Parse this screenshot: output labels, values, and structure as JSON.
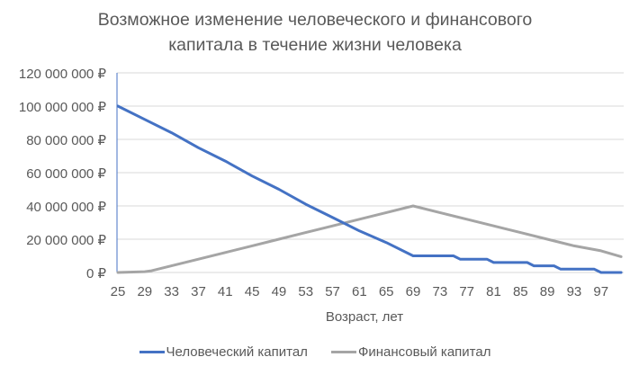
{
  "chart_data": {
    "type": "line",
    "title": "Возможное изменение человеческого и финансового капитала в течение жизни человека",
    "title_lines": [
      "Возможное изменение человеческого и финансового",
      "капитала в течение жизни человека"
    ],
    "xlabel": "Возраст, лет",
    "ylabel": "",
    "ylim": [
      0,
      120000000
    ],
    "xlim": [
      25,
      100
    ],
    "grid": true,
    "legend_position": "bottom",
    "y_ticks": [
      "0 ₽",
      "20 000 000 ₽",
      "40 000 000 ₽",
      "60 000 000 ₽",
      "80 000 000 ₽",
      "100 000 000 ₽",
      "120 000 000 ₽"
    ],
    "y_tick_values": [
      0,
      20000000,
      40000000,
      60000000,
      80000000,
      100000000,
      120000000
    ],
    "x_ticks": [
      "25",
      "29",
      "33",
      "37",
      "41",
      "45",
      "49",
      "53",
      "57",
      "61",
      "65",
      "69",
      "73",
      "77",
      "81",
      "85",
      "89",
      "93",
      "97"
    ],
    "series": [
      {
        "name": "Человеческий капитал",
        "color": "#4472C4",
        "points": [
          [
            25,
            100000000
          ],
          [
            29,
            92000000
          ],
          [
            33,
            84000000
          ],
          [
            37,
            75000000
          ],
          [
            41,
            67000000
          ],
          [
            45,
            58000000
          ],
          [
            49,
            50000000
          ],
          [
            53,
            41000000
          ],
          [
            57,
            33000000
          ],
          [
            61,
            25000000
          ],
          [
            65,
            18000000
          ],
          [
            69,
            10000000
          ],
          [
            75,
            10000000
          ],
          [
            76,
            8000000
          ],
          [
            80,
            8000000
          ],
          [
            81,
            6000000
          ],
          [
            86,
            6000000
          ],
          [
            87,
            4000000
          ],
          [
            90,
            4000000
          ],
          [
            91,
            2000000
          ],
          [
            96,
            2000000
          ],
          [
            97,
            0
          ],
          [
            100,
            0
          ]
        ]
      },
      {
        "name": "Финансовый капитал",
        "color": "#A5A5A5",
        "points": [
          [
            25,
            0
          ],
          [
            29,
            500000
          ],
          [
            30,
            1000000
          ],
          [
            33,
            4000000
          ],
          [
            37,
            8000000
          ],
          [
            41,
            12000000
          ],
          [
            45,
            16000000
          ],
          [
            49,
            20000000
          ],
          [
            53,
            24000000
          ],
          [
            57,
            28000000
          ],
          [
            61,
            32000000
          ],
          [
            65,
            36000000
          ],
          [
            69,
            40000000
          ],
          [
            73,
            36000000
          ],
          [
            77,
            32000000
          ],
          [
            81,
            28000000
          ],
          [
            85,
            24000000
          ],
          [
            89,
            20000000
          ],
          [
            93,
            16000000
          ],
          [
            97,
            13000000
          ],
          [
            100,
            9500000
          ]
        ]
      }
    ]
  },
  "legend": {
    "human": "Человеческий капитал",
    "financial": "Финансовый капитал"
  },
  "colors": {
    "human": "#4472C4",
    "financial": "#A5A5A5",
    "grid": "#D9D9D9",
    "text": "#595959"
  }
}
